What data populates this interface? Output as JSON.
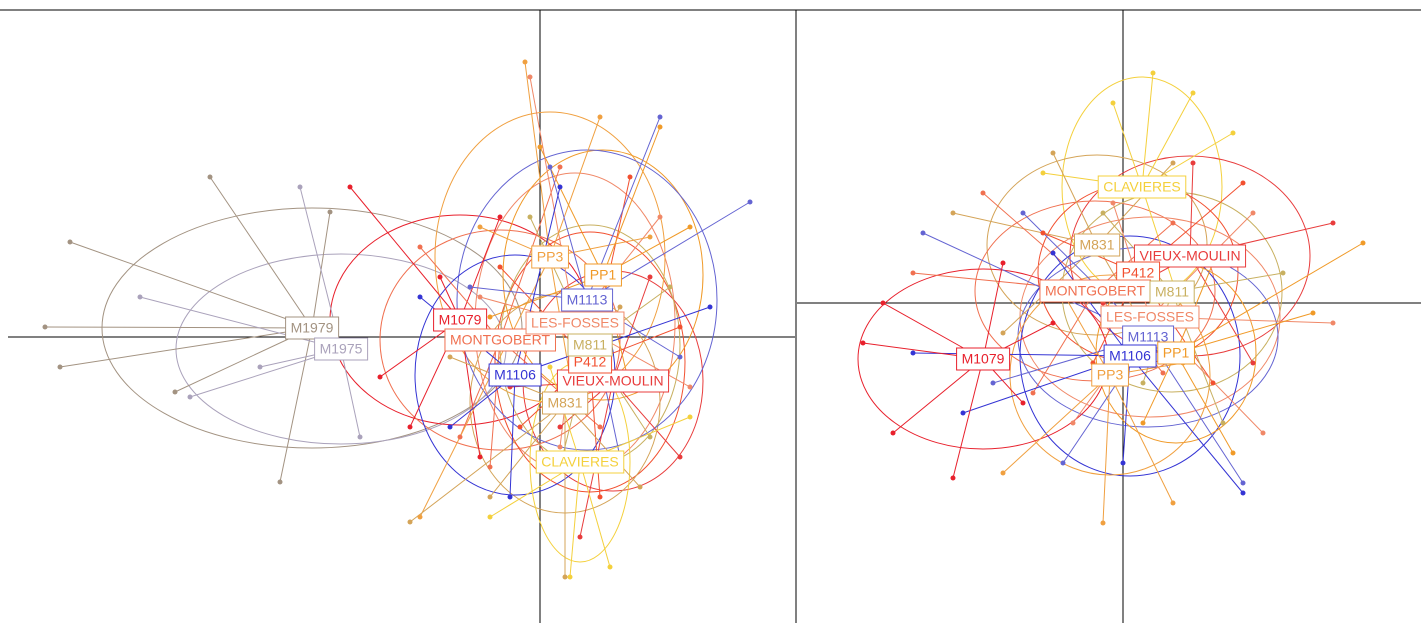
{
  "chart_data": [
    {
      "type": "scatter",
      "xlim": [
        -5.32,
        2.55
      ],
      "ylim": [
        -2.86,
        3.27
      ],
      "series": [
        {
          "name": "M1979",
          "color": "#a39382",
          "center": [
            -2.28,
            0.09
          ],
          "ellipse": [
            2.1,
            1.2
          ],
          "x": [
            -4.7,
            -4.95,
            -4.8,
            -3.3,
            -2.6,
            -2.1,
            -3.65
          ],
          "values": [
            0.95,
            0.1,
            -0.3,
            1.6,
            -1.45,
            1.25,
            -0.55
          ]
        },
        {
          "name": "M1975",
          "color": "#aaa2bb",
          "center": [
            -1.99,
            -0.12
          ],
          "ellipse": [
            1.65,
            0.95
          ],
          "x": [
            -4.0,
            -3.5,
            -2.4,
            -1.8,
            -2.8
          ],
          "values": [
            0.4,
            -0.6,
            1.5,
            -1.0,
            -0.3
          ]
        },
        {
          "name": "M1079",
          "color": "#e8202c",
          "center": [
            -0.8,
            0.17
          ],
          "ellipse": [
            1.3,
            1.05
          ],
          "x": [
            -1.9,
            -1.6,
            -1.3,
            -0.4,
            -0.6,
            -1.0
          ],
          "values": [
            1.5,
            -0.4,
            -0.9,
            1.2,
            -1.2,
            0.6
          ]
        },
        {
          "name": "MONTGOBERT",
          "color": "#f07050",
          "center": [
            -0.4,
            -0.03
          ],
          "ellipse": [
            1.2,
            1.1
          ],
          "x": [
            -1.2,
            -0.8,
            0.2,
            0.6,
            -0.5
          ],
          "values": [
            0.9,
            -1.0,
            1.7,
            -0.9,
            -1.3
          ]
        },
        {
          "name": "LES-FOSSES",
          "color": "#f08868",
          "center": [
            0.35,
            0.14
          ],
          "ellipse": [
            1.0,
            1.5
          ],
          "x": [
            -0.1,
            1.2,
            1.5,
            0.2,
            -0.6
          ],
          "values": [
            2.6,
            1.2,
            -0.5,
            -1.1,
            0.4
          ]
        },
        {
          "name": "VIEUX-MOULIN",
          "color": "#e83c3c",
          "center": [
            0.73,
            -0.44
          ],
          "ellipse": [
            0.9,
            1.1
          ],
          "x": [
            1.4,
            0.2,
            1.1,
            0.4,
            -0.3
          ],
          "values": [
            -1.2,
            -0.9,
            0.6,
            -2.0,
            -0.5
          ]
        },
        {
          "name": "P412",
          "color": "#f25030",
          "center": [
            0.5,
            -0.25
          ],
          "ellipse": [
            0.95,
            1.3
          ],
          "x": [
            0.9,
            1.4,
            -0.2,
            0.6,
            -0.4
          ],
          "values": [
            1.6,
            0.1,
            -0.9,
            -1.6,
            0.7
          ]
        },
        {
          "name": "PP3",
          "color": "#f0a040",
          "center": [
            0.1,
            0.8
          ],
          "ellipse": [
            1.15,
            1.45
          ],
          "x": [
            -0.15,
            0.6,
            1.1,
            -0.6,
            0.3,
            -1.2
          ],
          "values": [
            2.75,
            2.2,
            1.0,
            1.1,
            -0.4,
            -1.8
          ]
        },
        {
          "name": "PP1",
          "color": "#f09a28",
          "center": [
            0.63,
            0.62
          ],
          "ellipse": [
            1.0,
            1.25
          ],
          "x": [
            1.2,
            1.5,
            0.0,
            0.9,
            -0.5
          ],
          "values": [
            2.1,
            1.1,
            1.9,
            -0.5,
            0.2
          ]
        },
        {
          "name": "M831",
          "color": "#d4a458",
          "center": [
            0.25,
            -0.66
          ],
          "ellipse": [
            0.95,
            1.1
          ],
          "x": [
            0.25,
            1.0,
            -0.5,
            -0.9,
            0.8,
            -1.3
          ],
          "values": [
            -2.4,
            -1.5,
            -1.6,
            -0.2,
            0.3,
            -1.85
          ]
        },
        {
          "name": "M811",
          "color": "#c8b060",
          "center": [
            0.5,
            -0.08
          ],
          "ellipse": [
            0.9,
            1.2
          ],
          "x": [
            1.3,
            1.1,
            -0.1,
            0.2
          ],
          "values": [
            0.5,
            -1.0,
            1.2,
            -1.3
          ]
        },
        {
          "name": "M1113",
          "color": "#6464d2",
          "center": [
            0.47,
            0.37
          ],
          "ellipse": [
            1.3,
            1.5
          ],
          "x": [
            1.2,
            2.1,
            1.4,
            -0.7,
            0.1,
            0.8
          ],
          "values": [
            2.2,
            1.35,
            -0.2,
            0.5,
            1.7,
            -1.2
          ]
        },
        {
          "name": "M1106",
          "color": "#3434d4",
          "center": [
            -0.25,
            -0.38
          ],
          "ellipse": [
            1.0,
            1.2
          ],
          "x": [
            0.2,
            -0.9,
            -0.3,
            1.7,
            -1.2
          ],
          "values": [
            1.5,
            -0.9,
            -1.6,
            0.3,
            0.4
          ]
        },
        {
          "name": "CLAVIERES",
          "color": "#f4d03c",
          "center": [
            0.4,
            -1.25
          ],
          "ellipse": [
            0.5,
            1.0
          ],
          "x": [
            0.3,
            0.7,
            1.5,
            -0.5,
            0.1
          ],
          "values": [
            -2.4,
            -2.3,
            -0.8,
            -1.8,
            -0.3
          ]
        }
      ]
    },
    {
      "type": "scatter",
      "xlim": [
        -3.26,
        2.98
      ],
      "ylim": [
        -3.2,
        2.93
      ],
      "series": [
        {
          "name": "CLAVIERES",
          "color": "#f4d03c",
          "center": [
            0.19,
            1.16
          ],
          "ellipse": [
            0.8,
            1.1
          ],
          "x": [
            0.3,
            -0.1,
            1.1,
            0.7,
            -0.8,
            0.5
          ],
          "values": [
            2.3,
            2.0,
            1.7,
            2.1,
            1.3,
            0.2
          ]
        },
        {
          "name": "M831",
          "color": "#d4a458",
          "center": [
            -0.26,
            0.58
          ],
          "ellipse": [
            1.1,
            0.9
          ],
          "x": [
            -1.7,
            -0.7,
            0.5,
            -1.2,
            0.3
          ],
          "values": [
            0.9,
            1.5,
            1.4,
            -0.3,
            -0.4
          ]
        },
        {
          "name": "VIEUX-MOULIN",
          "color": "#e83c3c",
          "center": [
            0.67,
            0.47
          ],
          "ellipse": [
            1.2,
            1.0
          ],
          "x": [
            2.1,
            1.3,
            0.7,
            -0.2,
            1.1
          ],
          "values": [
            0.8,
            -0.6,
            1.4,
            0.0,
            0.4
          ]
        },
        {
          "name": "P412",
          "color": "#f25030",
          "center": [
            0.15,
            0.3
          ],
          "ellipse": [
            1.0,
            0.9
          ],
          "x": [
            1.2,
            -0.8,
            0.9,
            -0.3
          ],
          "values": [
            1.2,
            0.7,
            -0.8,
            -0.6
          ]
        },
        {
          "name": "MONTGOBERT",
          "color": "#f07050",
          "center": [
            -0.28,
            0.12
          ],
          "ellipse": [
            1.2,
            0.9
          ],
          "x": [
            -2.1,
            -1.4,
            0.5,
            -0.9,
            0.4
          ],
          "values": [
            0.3,
            1.1,
            0.8,
            -0.9,
            -0.7
          ]
        },
        {
          "name": "M811",
          "color": "#c8b060",
          "center": [
            0.49,
            0.11
          ],
          "ellipse": [
            1.1,
            1.0
          ],
          "x": [
            1.6,
            1.0,
            -0.2,
            0.2
          ],
          "values": [
            0.3,
            -1.2,
            0.9,
            -0.8
          ]
        },
        {
          "name": "LES-FOSSES",
          "color": "#f08868",
          "center": [
            0.27,
            -0.14
          ],
          "ellipse": [
            1.3,
            1.0
          ],
          "x": [
            2.1,
            1.4,
            -0.5,
            -0.1,
            1.3
          ],
          "values": [
            -0.2,
            -1.3,
            -1.2,
            1.0,
            0.9
          ]
        },
        {
          "name": "M1113",
          "color": "#6464d2",
          "center": [
            0.25,
            -0.34
          ],
          "ellipse": [
            1.3,
            0.9
          ],
          "x": [
            -1.0,
            -2.0,
            1.2,
            -0.6,
            -1.3
          ],
          "values": [
            0.9,
            0.7,
            -1.8,
            -1.6,
            -0.8
          ]
        },
        {
          "name": "M1106",
          "color": "#3434d4",
          "center": [
            0.07,
            -0.53
          ],
          "ellipse": [
            1.1,
            1.2
          ],
          "x": [
            -2.1,
            -1.6,
            1.2,
            0.0,
            -0.7
          ],
          "values": [
            -0.5,
            -1.1,
            -1.9,
            -1.6,
            0.5
          ]
        },
        {
          "name": "PP1",
          "color": "#f09a28",
          "center": [
            0.53,
            -0.5
          ],
          "ellipse": [
            0.8,
            0.9
          ],
          "x": [
            2.4,
            1.9,
            1.1,
            0.2,
            0.9
          ],
          "values": [
            0.6,
            -0.1,
            -1.5,
            -1.2,
            0.4
          ]
        },
        {
          "name": "PP3",
          "color": "#f0a040",
          "center": [
            -0.13,
            -0.72
          ],
          "ellipse": [
            1.0,
            1.0
          ],
          "x": [
            -0.2,
            0.5,
            -1.2,
            0.6,
            -0.6
          ],
          "values": [
            -2.2,
            -2.0,
            -1.7,
            -0.6,
            0.1
          ]
        },
        {
          "name": "M1079",
          "color": "#e8202c",
          "center": [
            -1.4,
            -0.56
          ],
          "ellipse": [
            1.25,
            0.9
          ],
          "x": [
            -2.6,
            -2.3,
            -1.7,
            -1.0,
            -2.4,
            -0.7,
            -1.2
          ],
          "values": [
            -0.4,
            -1.3,
            -1.75,
            -1.0,
            0.0,
            -0.2,
            0.4
          ]
        }
      ]
    }
  ]
}
